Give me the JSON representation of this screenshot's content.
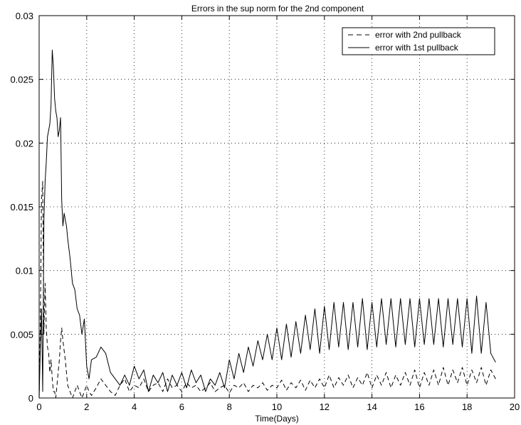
{
  "chart_data": {
    "type": "line",
    "title": "Errors in the sup norm for the 2nd component",
    "xlabel": "Time(Days)",
    "ylabel": "",
    "xlim": [
      0,
      20
    ],
    "ylim": [
      0,
      0.03
    ],
    "xticks": [
      0,
      2,
      4,
      6,
      8,
      10,
      12,
      14,
      16,
      18,
      20
    ],
    "yticks": [
      0,
      0.005,
      0.01,
      0.015,
      0.02,
      0.025,
      0.03
    ],
    "xtick_labels": [
      "0",
      "2",
      "4",
      "6",
      "8",
      "10",
      "12",
      "14",
      "16",
      "18",
      "20"
    ],
    "ytick_labels": [
      "0",
      "0.005",
      "0.01",
      "0.015",
      "0.02",
      "0.025",
      "0.03"
    ],
    "grid": true,
    "legend_position": "top-right",
    "series": [
      {
        "name": "error with 2nd pullback",
        "style": "dashed",
        "color": "#000000",
        "x": [
          0.0,
          0.05,
          0.1,
          0.15,
          0.2,
          0.25,
          0.3,
          0.35,
          0.4,
          0.45,
          0.5,
          0.55,
          0.6,
          0.65,
          0.7,
          0.75,
          0.8,
          0.85,
          0.9,
          0.95,
          1.0,
          1.1,
          1.2,
          1.3,
          1.4,
          1.5,
          1.6,
          1.7,
          1.8,
          1.9,
          2.0,
          2.1,
          2.2,
          2.4,
          2.6,
          2.8,
          3.0,
          3.2,
          3.4,
          3.6,
          3.8,
          4.0,
          4.2,
          4.4,
          4.6,
          4.8,
          5.0,
          5.2,
          5.4,
          5.6,
          5.8,
          6.0,
          6.2,
          6.4,
          6.6,
          6.8,
          7.0,
          7.2,
          7.4,
          7.6,
          7.8,
          8.0,
          8.2,
          8.4,
          8.6,
          8.8,
          9.0,
          9.2,
          9.4,
          9.6,
          9.8,
          10.0,
          10.2,
          10.4,
          10.6,
          10.8,
          11.0,
          11.2,
          11.4,
          11.6,
          11.8,
          12.0,
          12.2,
          12.4,
          12.6,
          12.8,
          13.0,
          13.2,
          13.4,
          13.6,
          13.8,
          14.0,
          14.2,
          14.4,
          14.6,
          14.8,
          15.0,
          15.2,
          15.4,
          15.6,
          15.8,
          16.0,
          16.2,
          16.4,
          16.6,
          16.8,
          17.0,
          17.2,
          17.4,
          17.6,
          17.8,
          18.0,
          18.2,
          18.4,
          18.6,
          18.8,
          19.0,
          19.2
        ],
        "y": [
          0.0,
          0.006,
          0.0155,
          0.017,
          0.005,
          0.009,
          0.0055,
          0.004,
          0.0035,
          0.002,
          0.003,
          0.0015,
          0.0005,
          0.0005,
          0.0,
          0.001,
          0.002,
          0.003,
          0.0045,
          0.0055,
          0.0045,
          0.003,
          0.001,
          0.0005,
          0.0,
          0.0005,
          0.001,
          0.0005,
          0.0,
          0.0005,
          0.001,
          0.0005,
          0.0002,
          0.0008,
          0.0015,
          0.001,
          0.0005,
          0.0002,
          0.001,
          0.0015,
          0.0005,
          0.001,
          0.0008,
          0.0015,
          0.0005,
          0.001,
          0.0012,
          0.0005,
          0.0015,
          0.0008,
          0.001,
          0.0005,
          0.0012,
          0.0008,
          0.001,
          0.0005,
          0.0008,
          0.0012,
          0.0005,
          0.0008,
          0.001,
          0.0004,
          0.001,
          0.0008,
          0.0012,
          0.0005,
          0.001,
          0.0008,
          0.0012,
          0.0006,
          0.001,
          0.0008,
          0.0014,
          0.0006,
          0.0012,
          0.0008,
          0.0014,
          0.0006,
          0.0014,
          0.0008,
          0.0015,
          0.0008,
          0.0018,
          0.0008,
          0.0016,
          0.001,
          0.0018,
          0.0008,
          0.0016,
          0.001,
          0.002,
          0.0008,
          0.0018,
          0.001,
          0.002,
          0.0008,
          0.0018,
          0.001,
          0.002,
          0.001,
          0.0022,
          0.0008,
          0.002,
          0.001,
          0.0022,
          0.001,
          0.0024,
          0.001,
          0.0022,
          0.0012,
          0.0024,
          0.001,
          0.0022,
          0.0012,
          0.0024,
          0.001,
          0.0022,
          0.0015
        ]
      },
      {
        "name": "error with 1st pullback",
        "style": "solid",
        "color": "#000000",
        "x": [
          0.0,
          0.05,
          0.1,
          0.15,
          0.2,
          0.25,
          0.3,
          0.35,
          0.4,
          0.45,
          0.5,
          0.55,
          0.6,
          0.65,
          0.7,
          0.75,
          0.8,
          0.85,
          0.9,
          0.95,
          1.0,
          1.05,
          1.1,
          1.15,
          1.2,
          1.3,
          1.4,
          1.5,
          1.6,
          1.7,
          1.8,
          1.9,
          2.0,
          2.1,
          2.2,
          2.4,
          2.6,
          2.8,
          3.0,
          3.2,
          3.4,
          3.6,
          3.8,
          4.0,
          4.2,
          4.4,
          4.6,
          4.8,
          5.0,
          5.2,
          5.4,
          5.6,
          5.8,
          6.0,
          6.2,
          6.4,
          6.6,
          6.8,
          7.0,
          7.2,
          7.4,
          7.6,
          7.8,
          8.0,
          8.2,
          8.4,
          8.6,
          8.8,
          9.0,
          9.2,
          9.4,
          9.6,
          9.8,
          10.0,
          10.2,
          10.4,
          10.6,
          10.8,
          11.0,
          11.2,
          11.4,
          11.6,
          11.8,
          12.0,
          12.2,
          12.4,
          12.6,
          12.8,
          13.0,
          13.2,
          13.4,
          13.6,
          13.8,
          14.0,
          14.2,
          14.4,
          14.6,
          14.8,
          15.0,
          15.2,
          15.4,
          15.6,
          15.8,
          16.0,
          16.2,
          16.4,
          16.6,
          16.8,
          17.0,
          17.2,
          17.4,
          17.6,
          17.8,
          18.0,
          18.2,
          18.4,
          18.6,
          18.8,
          19.0,
          19.2
        ],
        "y": [
          0.0,
          0.004,
          0.007,
          0.0005,
          0.014,
          0.017,
          0.0185,
          0.0205,
          0.021,
          0.0215,
          0.023,
          0.0273,
          0.026,
          0.0235,
          0.0225,
          0.022,
          0.0205,
          0.021,
          0.022,
          0.0155,
          0.0135,
          0.0145,
          0.014,
          0.0135,
          0.0125,
          0.011,
          0.009,
          0.0085,
          0.007,
          0.0065,
          0.005,
          0.0062,
          0.0025,
          0.0015,
          0.003,
          0.0032,
          0.004,
          0.0035,
          0.002,
          0.0015,
          0.001,
          0.0018,
          0.001,
          0.0025,
          0.0015,
          0.0022,
          0.0005,
          0.0018,
          0.0012,
          0.002,
          0.0005,
          0.0018,
          0.001,
          0.002,
          0.0008,
          0.0022,
          0.0012,
          0.0018,
          0.0005,
          0.0015,
          0.001,
          0.002,
          0.0008,
          0.003,
          0.0015,
          0.0035,
          0.002,
          0.004,
          0.0025,
          0.0045,
          0.003,
          0.005,
          0.003,
          0.0055,
          0.003,
          0.0058,
          0.0032,
          0.006,
          0.0035,
          0.0065,
          0.0038,
          0.007,
          0.0035,
          0.0072,
          0.0038,
          0.0075,
          0.004,
          0.0075,
          0.0038,
          0.0075,
          0.004,
          0.0078,
          0.0038,
          0.0075,
          0.004,
          0.0078,
          0.0042,
          0.0078,
          0.004,
          0.0078,
          0.0042,
          0.0078,
          0.004,
          0.0078,
          0.0042,
          0.0078,
          0.0042,
          0.0078,
          0.004,
          0.0078,
          0.0042,
          0.0078,
          0.004,
          0.0078,
          0.0035,
          0.008,
          0.0035,
          0.0075,
          0.0035,
          0.0028
        ]
      }
    ]
  }
}
